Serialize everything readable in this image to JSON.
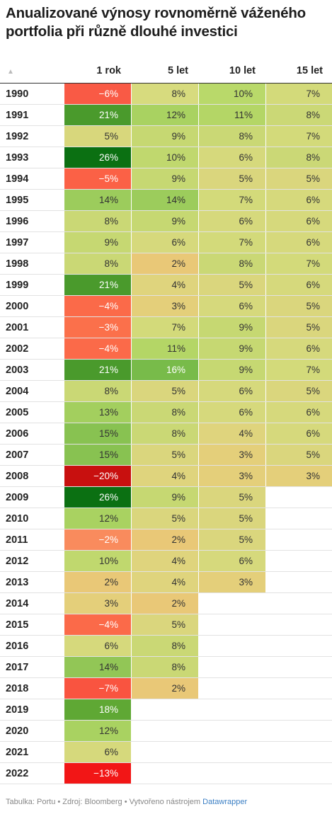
{
  "title": "Anualizované výnosy rovnoměrně váženého portfolia při různě dlouhé investici",
  "sort_icon": "sort-up-icon",
  "chart_data": {
    "type": "table",
    "columns": [
      "1 rok",
      "5 let",
      "10 let",
      "15 let"
    ],
    "rows": [
      {
        "year": "1990",
        "values": [
          "−6%",
          "8%",
          "10%",
          "7%"
        ],
        "colors": [
          "#f95a45",
          "#d7db7e",
          "#b9d96a",
          "#d3da7a"
        ]
      },
      {
        "year": "1991",
        "values": [
          "21%",
          "12%",
          "11%",
          "8%"
        ],
        "colors": [
          "#4a9a2c",
          "#a9d261",
          "#b4d666",
          "#cbd876"
        ]
      },
      {
        "year": "1992",
        "values": [
          "5%",
          "9%",
          "8%",
          "7%"
        ],
        "colors": [
          "#d8d77c",
          "#c6d872",
          "#cad875",
          "#d3da7a"
        ]
      },
      {
        "year": "1993",
        "values": [
          "26%",
          "10%",
          "6%",
          "8%"
        ],
        "colors": [
          "#0b7012",
          "#c0d86e",
          "#d6d97c",
          "#cbd876"
        ]
      },
      {
        "year": "1994",
        "values": [
          "−5%",
          "9%",
          "5%",
          "5%"
        ],
        "colors": [
          "#fb6146",
          "#c6d872",
          "#dad67d",
          "#dad67d"
        ]
      },
      {
        "year": "1995",
        "values": [
          "14%",
          "14%",
          "7%",
          "6%"
        ],
        "colors": [
          "#9ccc5c",
          "#9ccc5c",
          "#d3da7a",
          "#d6d97c"
        ]
      },
      {
        "year": "1996",
        "values": [
          "8%",
          "9%",
          "6%",
          "6%"
        ],
        "colors": [
          "#cad875",
          "#c6d872",
          "#d6d97c",
          "#d6d97c"
        ]
      },
      {
        "year": "1997",
        "values": [
          "9%",
          "6%",
          "7%",
          "6%"
        ],
        "colors": [
          "#c6d872",
          "#d6d97c",
          "#d3da7a",
          "#d6d97c"
        ]
      },
      {
        "year": "1998",
        "values": [
          "8%",
          "2%",
          "8%",
          "7%"
        ],
        "colors": [
          "#cad875",
          "#e9c877",
          "#cad875",
          "#d3da7a"
        ]
      },
      {
        "year": "1999",
        "values": [
          "21%",
          "4%",
          "5%",
          "6%"
        ],
        "colors": [
          "#4a9a2c",
          "#dfd47d",
          "#dad67d",
          "#d6d97c"
        ]
      },
      {
        "year": "2000",
        "values": [
          "−4%",
          "3%",
          "6%",
          "5%"
        ],
        "colors": [
          "#fb6a49",
          "#e4cf7a",
          "#d6d97c",
          "#dad67d"
        ]
      },
      {
        "year": "2001",
        "values": [
          "−3%",
          "7%",
          "9%",
          "5%"
        ],
        "colors": [
          "#fb704b",
          "#d3da7a",
          "#c6d872",
          "#dad67d"
        ]
      },
      {
        "year": "2002",
        "values": [
          "−4%",
          "11%",
          "9%",
          "6%"
        ],
        "colors": [
          "#fb6a49",
          "#b4d666",
          "#c6d872",
          "#d6d97c"
        ]
      },
      {
        "year": "2003",
        "values": [
          "21%",
          "16%",
          "9%",
          "7%"
        ],
        "colors": [
          "#4a9a2c",
          "#78bb4a",
          "#c6d872",
          "#d3da7a"
        ]
      },
      {
        "year": "2004",
        "values": [
          "8%",
          "5%",
          "6%",
          "5%"
        ],
        "colors": [
          "#cad875",
          "#dad67d",
          "#d6d97c",
          "#dad67d"
        ]
      },
      {
        "year": "2005",
        "values": [
          "13%",
          "8%",
          "6%",
          "6%"
        ],
        "colors": [
          "#a3cf5e",
          "#cad875",
          "#d6d97c",
          "#d6d97c"
        ]
      },
      {
        "year": "2006",
        "values": [
          "15%",
          "8%",
          "4%",
          "6%"
        ],
        "colors": [
          "#88c251",
          "#cad875",
          "#dfd47d",
          "#d6d97c"
        ]
      },
      {
        "year": "2007",
        "values": [
          "15%",
          "5%",
          "3%",
          "5%"
        ],
        "colors": [
          "#88c251",
          "#dad67d",
          "#e4cf7a",
          "#dad67d"
        ]
      },
      {
        "year": "2008",
        "values": [
          "−20%",
          "4%",
          "3%",
          "3%"
        ],
        "colors": [
          "#c8100f",
          "#dfd47d",
          "#e4cf7a",
          "#e4cf7a"
        ]
      },
      {
        "year": "2009",
        "values": [
          "26%",
          "9%",
          "5%",
          ""
        ],
        "colors": [
          "#0b7012",
          "#c6d872",
          "#dad67d",
          ""
        ]
      },
      {
        "year": "2010",
        "values": [
          "12%",
          "5%",
          "5%",
          ""
        ],
        "colors": [
          "#a9d261",
          "#dad67d",
          "#dad67d",
          ""
        ]
      },
      {
        "year": "2011",
        "values": [
          "−2%",
          "2%",
          "5%",
          ""
        ],
        "colors": [
          "#f98b5d",
          "#e9c877",
          "#dad67d",
          ""
        ]
      },
      {
        "year": "2012",
        "values": [
          "10%",
          "4%",
          "6%",
          ""
        ],
        "colors": [
          "#c0d86e",
          "#dfd47d",
          "#d6d97c",
          ""
        ]
      },
      {
        "year": "2013",
        "values": [
          "2%",
          "4%",
          "3%",
          ""
        ],
        "colors": [
          "#e9c877",
          "#dfd47d",
          "#e4cf7a",
          ""
        ]
      },
      {
        "year": "2014",
        "values": [
          "3%",
          "2%",
          "",
          ""
        ],
        "colors": [
          "#e4cf7a",
          "#e9c877",
          "",
          ""
        ]
      },
      {
        "year": "2015",
        "values": [
          "−4%",
          "5%",
          "",
          ""
        ],
        "colors": [
          "#fb6a49",
          "#dad67d",
          "",
          ""
        ]
      },
      {
        "year": "2016",
        "values": [
          "6%",
          "8%",
          "",
          ""
        ],
        "colors": [
          "#d6d97c",
          "#cad875",
          "",
          ""
        ]
      },
      {
        "year": "2017",
        "values": [
          "14%",
          "8%",
          "",
          ""
        ],
        "colors": [
          "#92c656",
          "#cad875",
          "",
          ""
        ]
      },
      {
        "year": "2018",
        "values": [
          "−7%",
          "2%",
          "",
          ""
        ],
        "colors": [
          "#f95440",
          "#e9c877",
          "",
          ""
        ]
      },
      {
        "year": "2019",
        "values": [
          "18%",
          "",
          "",
          ""
        ],
        "colors": [
          "#5fa834",
          "",
          "",
          ""
        ]
      },
      {
        "year": "2020",
        "values": [
          "12%",
          "",
          "",
          ""
        ],
        "colors": [
          "#a9d261",
          "",
          "",
          ""
        ]
      },
      {
        "year": "2021",
        "values": [
          "6%",
          "",
          "",
          ""
        ],
        "colors": [
          "#d6d97c",
          "",
          "",
          ""
        ]
      },
      {
        "year": "2022",
        "values": [
          "−13%",
          "",
          "",
          ""
        ],
        "colors": [
          "#f21616",
          "",
          "",
          ""
        ]
      }
    ],
    "dark_text_colors": [
      "#f95a45",
      "#4a9a2c",
      "#0b7012",
      "#fb6146",
      "#fb6a49",
      "#fb704b",
      "#c8100f",
      "#f98b5d",
      "#f95440",
      "#5fa834",
      "#f21616",
      "#78bb4a"
    ]
  },
  "footer": {
    "text": "Tabulka: Portu • Zdroj: Bloomberg • Vytvořeno nástrojem ",
    "link": "Datawrapper"
  }
}
